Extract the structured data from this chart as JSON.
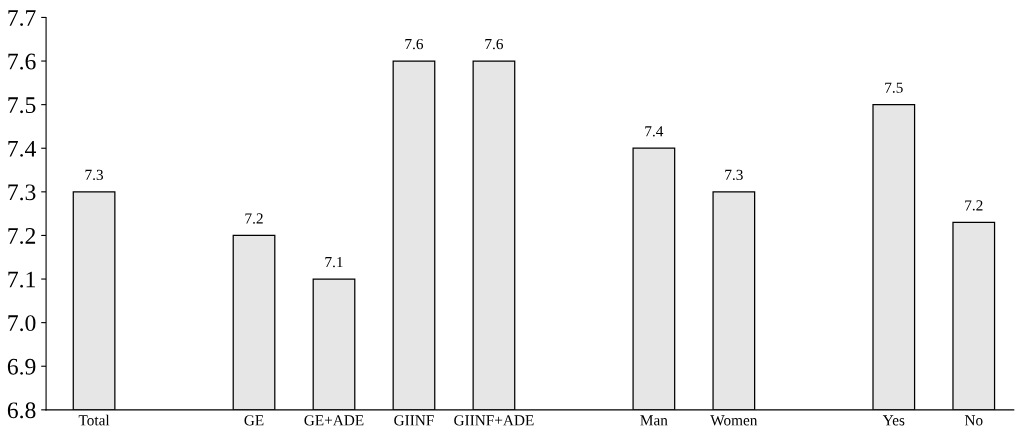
{
  "chart_data": {
    "type": "bar",
    "categories": [
      "Total",
      null,
      "GE",
      "GE+ADE",
      "GIINF",
      "GIINF+ADE",
      null,
      "Man",
      "Women",
      null,
      "Yes",
      "No"
    ],
    "values": [
      7.3,
      null,
      7.2,
      7.1,
      7.6,
      7.6,
      null,
      7.4,
      7.3,
      null,
      7.5,
      7.23
    ],
    "value_labels": [
      "7.3",
      null,
      "7.2",
      "7.1",
      "7.6",
      "7.6",
      null,
      "7.4",
      "7.3",
      null,
      "7.5",
      "7.2"
    ],
    "color": "#e6e6e6",
    "ylim": [
      6.8,
      7.7
    ],
    "yticks": [
      6.8,
      6.9,
      {
        "value": 7.0,
        "label": "7.0"
      },
      7.1,
      7.2,
      7.3,
      7.4,
      7.5,
      7.6,
      7.7
    ],
    "grid": false,
    "legend": false
  }
}
